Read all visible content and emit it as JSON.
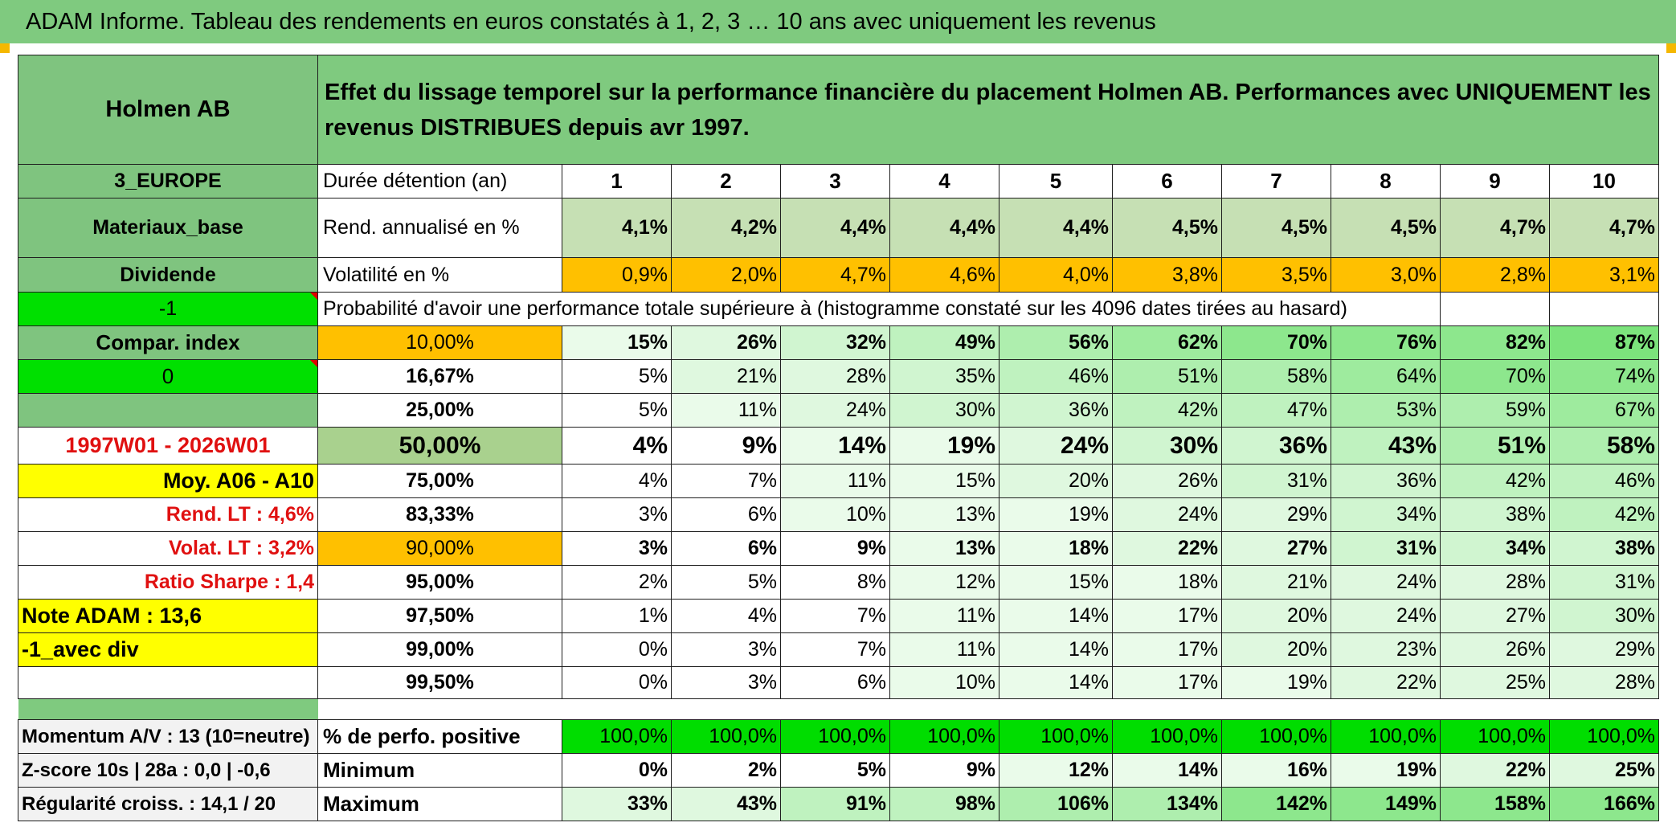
{
  "title": "ADAM Informe. Tableau des rendements en euros constatés à 1, 2, 3 … 10 ans avec uniquement les revenus",
  "left_labels": {
    "company": "Holmen AB",
    "region": "3_EUROPE",
    "sector": "Materiaux_base",
    "type": "Dividende",
    "flag1": "-1",
    "compar": "Compar. index",
    "flag2": "0",
    "period": "1997W01 - 2026W01",
    "moy": "Moy. A06 - A10",
    "rend_lt": "Rend. LT :   4,6%",
    "volat_lt": "Volat. LT :   3,2%",
    "sharpe": "Ratio Sharpe :   1,4",
    "note": "Note ADAM : 13,6",
    "avec_div": "-1_avec div",
    "momentum": "Momentum A/V : 13 (10=neutre)",
    "zscore": "Z-score 10s | 28a : 0,0 | -0,6",
    "regularite": "Régularité croiss. : 14,1 / 20"
  },
  "description": "Effet du lissage temporel sur la performance financière du placement Holmen AB. Performances avec UNIQUEMENT les revenus DISTRIBUES depuis avr 1997.",
  "row_labels": {
    "duree": "Durée détention (an)",
    "rend": "Rend. annualisé en %",
    "vol": "Volatilité en %",
    "proba": "Probabilité d'avoir une performance totale supérieure à (histogramme constaté sur les 4096 dates tirées au hasard)",
    "positive": "% de perfo. positive",
    "minimum": "Minimum",
    "maximum": "Maximum"
  },
  "years": [
    "1",
    "2",
    "3",
    "4",
    "5",
    "6",
    "7",
    "8",
    "9",
    "10"
  ],
  "rend": [
    "4,1%",
    "4,2%",
    "4,4%",
    "4,4%",
    "4,4%",
    "4,5%",
    "4,5%",
    "4,5%",
    "4,7%",
    "4,7%"
  ],
  "vol": [
    "0,9%",
    "2,0%",
    "4,7%",
    "4,6%",
    "4,0%",
    "3,8%",
    "3,5%",
    "3,0%",
    "2,8%",
    "3,1%"
  ],
  "proba": [
    {
      "level": "10,00%",
      "values": [
        "15%",
        "26%",
        "32%",
        "49%",
        "56%",
        "62%",
        "70%",
        "76%",
        "82%",
        "87%"
      ]
    },
    {
      "level": "16,67%",
      "values": [
        "5%",
        "21%",
        "28%",
        "35%",
        "46%",
        "51%",
        "58%",
        "64%",
        "70%",
        "74%"
      ]
    },
    {
      "level": "25,00%",
      "values": [
        "5%",
        "11%",
        "24%",
        "30%",
        "36%",
        "42%",
        "47%",
        "53%",
        "59%",
        "67%"
      ]
    },
    {
      "level": "50,00%",
      "values": [
        "4%",
        "9%",
        "14%",
        "19%",
        "24%",
        "30%",
        "36%",
        "43%",
        "51%",
        "58%"
      ]
    },
    {
      "level": "75,00%",
      "values": [
        "4%",
        "7%",
        "11%",
        "15%",
        "20%",
        "26%",
        "31%",
        "36%",
        "42%",
        "46%"
      ]
    },
    {
      "level": "83,33%",
      "values": [
        "3%",
        "6%",
        "10%",
        "13%",
        "19%",
        "24%",
        "29%",
        "34%",
        "38%",
        "42%"
      ]
    },
    {
      "level": "90,00%",
      "values": [
        "3%",
        "6%",
        "9%",
        "13%",
        "18%",
        "22%",
        "27%",
        "31%",
        "34%",
        "38%"
      ]
    },
    {
      "level": "95,00%",
      "values": [
        "2%",
        "5%",
        "8%",
        "12%",
        "15%",
        "18%",
        "21%",
        "24%",
        "28%",
        "31%"
      ]
    },
    {
      "level": "97,50%",
      "values": [
        "1%",
        "4%",
        "7%",
        "11%",
        "14%",
        "17%",
        "20%",
        "24%",
        "27%",
        "30%"
      ]
    },
    {
      "level": "99,00%",
      "values": [
        "0%",
        "3%",
        "7%",
        "11%",
        "14%",
        "17%",
        "20%",
        "23%",
        "26%",
        "29%"
      ]
    },
    {
      "level": "99,50%",
      "values": [
        "0%",
        "3%",
        "6%",
        "10%",
        "14%",
        "17%",
        "19%",
        "22%",
        "25%",
        "28%"
      ]
    }
  ],
  "positive": [
    "100,0%",
    "100,0%",
    "100,0%",
    "100,0%",
    "100,0%",
    "100,0%",
    "100,0%",
    "100,0%",
    "100,0%",
    "100,0%"
  ],
  "minimum": [
    "0%",
    "2%",
    "5%",
    "9%",
    "12%",
    "14%",
    "16%",
    "19%",
    "22%",
    "25%"
  ],
  "maximum": [
    "33%",
    "43%",
    "91%",
    "98%",
    "106%",
    "134%",
    "142%",
    "149%",
    "158%",
    "166%"
  ],
  "colors": {
    "header_green": "#7fca7f",
    "orange": "#ffc000",
    "bright_green": "#00e000",
    "yellow": "#ffff00",
    "red_text": "#e01010"
  }
}
